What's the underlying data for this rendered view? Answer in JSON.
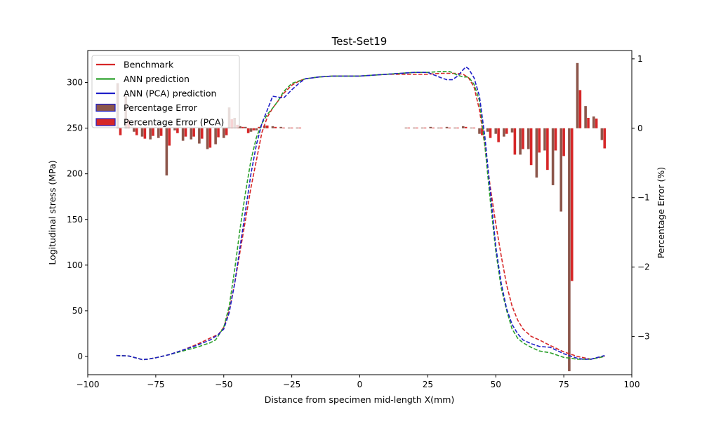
{
  "chart_data": {
    "type": "line",
    "title": "Test-Set19",
    "xlabel": "Distance from specimen mid-length X(mm)",
    "ylabel": "Logitudinal stress (MPa)",
    "y2label": "Percentage Error (%)",
    "xlim": [
      -100,
      100
    ],
    "ylim": [
      -20,
      335
    ],
    "y2lim": [
      -3.55,
      1.12
    ],
    "xticks": [
      -100,
      -75,
      -50,
      -25,
      0,
      25,
      50,
      75,
      100
    ],
    "yticks": [
      0,
      50,
      100,
      150,
      200,
      250,
      300
    ],
    "y2ticks": [
      -3,
      -2,
      -1,
      0,
      1
    ],
    "grid": false,
    "legend_placement": "top-left",
    "series": [
      {
        "name": "Benchmark",
        "color": "#d62728",
        "x": [
          -89.5,
          -85,
          -83,
          -80,
          -78,
          -75,
          -70,
          -65,
          -60,
          -55,
          -52,
          -50,
          -48,
          -46,
          -44,
          -42,
          -40,
          -38,
          -36,
          -34,
          -32,
          -30,
          -28,
          -25,
          -22,
          -20,
          -15,
          -10,
          -5,
          0,
          5,
          10,
          15,
          20,
          25,
          30,
          35,
          38,
          40,
          42,
          44,
          46,
          48,
          50,
          52,
          54,
          56,
          58,
          60,
          63,
          66,
          70,
          75,
          80,
          85,
          90
        ],
        "y": [
          1,
          0.5,
          -1,
          -3.5,
          -3,
          -1.5,
          2,
          7,
          13,
          20,
          24,
          32,
          50,
          80,
          115,
          150,
          185,
          215,
          245,
          262,
          272,
          280,
          288,
          297,
          302,
          304,
          306,
          307,
          307,
          307,
          308,
          309,
          309,
          309,
          309,
          310,
          310,
          309,
          305,
          295,
          270,
          230,
          185,
          145,
          110,
          78,
          55,
          40,
          30,
          22,
          18,
          12,
          5,
          0,
          -3,
          0
        ]
      },
      {
        "name": "ANN prediction",
        "color": "#2ca02c",
        "x": [
          -89.5,
          -85,
          -83,
          -80,
          -78,
          -75,
          -70,
          -65,
          -60,
          -55,
          -53,
          -50,
          -48,
          -46,
          -44,
          -42,
          -40,
          -38,
          -36,
          -34,
          -32,
          -30,
          -28,
          -25,
          -22,
          -20,
          -15,
          -10,
          -5,
          0,
          5,
          10,
          15,
          20,
          25,
          30,
          33,
          36,
          38,
          40,
          42,
          44,
          46,
          48,
          50,
          52,
          54,
          56,
          58,
          60,
          63,
          66,
          70,
          75,
          80,
          85,
          90
        ],
        "y": [
          1,
          0.5,
          -1,
          -3.5,
          -3,
          -1.5,
          2,
          6,
          10,
          15,
          18,
          32,
          55,
          95,
          140,
          180,
          215,
          240,
          255,
          265,
          272,
          280,
          290,
          299,
          302,
          304,
          306,
          307,
          307,
          307,
          308,
          309,
          310,
          311,
          311,
          312,
          312,
          308,
          306,
          306,
          298,
          280,
          230,
          170,
          115,
          75,
          50,
          30,
          20,
          15,
          10,
          6,
          4,
          -1,
          -3,
          -3,
          0
        ]
      },
      {
        "name": "ANN (PCA) prediction",
        "color": "#1f1fc8",
        "x": [
          -89.5,
          -85,
          -83,
          -80,
          -78,
          -75,
          -70,
          -65,
          -60,
          -55,
          -52,
          -50,
          -48,
          -46,
          -44,
          -42,
          -40,
          -38,
          -36,
          -34,
          -32,
          -30,
          -28,
          -25,
          -22,
          -20,
          -15,
          -10,
          -5,
          0,
          5,
          10,
          15,
          20,
          25,
          30,
          32,
          34,
          36,
          38,
          39,
          40,
          42,
          44,
          46,
          48,
          50,
          52,
          54,
          56,
          58,
          60,
          63,
          66,
          70,
          75,
          80,
          82,
          85,
          90
        ],
        "y": [
          1,
          0.5,
          -1,
          -3.5,
          -3,
          -1.5,
          2,
          7,
          12,
          18,
          24,
          30,
          48,
          80,
          120,
          160,
          200,
          232,
          255,
          270,
          285,
          284,
          283,
          292,
          300,
          304,
          306,
          307,
          307,
          307,
          308,
          309,
          310,
          311,
          311,
          305,
          303,
          303,
          307,
          314,
          317,
          315,
          305,
          285,
          240,
          180,
          120,
          80,
          52,
          35,
          25,
          18,
          14,
          11,
          10,
          3,
          -2,
          -3,
          -3,
          1
        ]
      },
      {
        "name": "Percentage Error",
        "color": "#8c564b",
        "edgecolor": "#1f1fc8",
        "type": "bar",
        "x": [
          -89,
          -86,
          -83,
          -80,
          -77,
          -74,
          -71,
          -68,
          -65,
          -62,
          -59,
          -56,
          -53,
          -50,
          -48,
          -46,
          -44,
          -42,
          -40,
          -38,
          -35,
          -32,
          -29,
          -26,
          -23,
          17,
          20,
          23,
          26,
          29,
          32,
          35,
          38,
          41,
          44,
          47,
          50,
          53,
          56,
          59,
          62,
          65,
          68,
          71,
          74,
          77,
          80,
          83,
          86,
          89
        ],
        "values": [
          0.65,
          0.47,
          -0.05,
          -0.12,
          -0.16,
          -0.14,
          -0.68,
          -0.03,
          -0.18,
          -0.16,
          -0.22,
          -0.3,
          -0.23,
          -0.14,
          0.3,
          0.15,
          0.03,
          0.02,
          -0.05,
          -0.03,
          0.04,
          0.03,
          0.02,
          0.01,
          0.01,
          0.01,
          0.01,
          0.01,
          0.02,
          0.01,
          0.02,
          0.01,
          0.03,
          0.01,
          -0.08,
          -0.05,
          -0.08,
          -0.12,
          -0.06,
          -0.38,
          -0.3,
          -0.71,
          -0.32,
          -0.82,
          -1.2,
          -3.5,
          0.94,
          0.32,
          0.17,
          -0.17
        ]
      },
      {
        "name": "Percentage Error (PCA)",
        "color": "#d62728",
        "edgecolor": "#1f1fc8",
        "type": "bar",
        "x": [
          -88,
          -85,
          -82,
          -79,
          -76,
          -73,
          -70,
          -67,
          -64,
          -61,
          -58,
          -55,
          -52,
          -49,
          -47,
          -45,
          -43,
          -41,
          -39,
          -37,
          -34,
          -31,
          -28,
          -25,
          -22,
          18,
          21,
          24,
          27,
          30,
          33,
          36,
          39,
          42,
          45,
          48,
          51,
          54,
          57,
          60,
          63,
          66,
          69,
          72,
          75,
          78,
          81,
          84,
          87,
          90
        ],
        "values": [
          -0.1,
          0.12,
          -0.1,
          -0.15,
          -0.11,
          -0.11,
          -0.25,
          -0.07,
          -0.12,
          -0.12,
          -0.15,
          -0.28,
          -0.13,
          -0.1,
          0.13,
          0.05,
          0.02,
          -0.07,
          -0.03,
          0.02,
          0.04,
          0.02,
          0.01,
          0.01,
          0.01,
          0.01,
          0.01,
          0.01,
          0.01,
          0.01,
          0.01,
          0.01,
          0.02,
          0.01,
          -0.1,
          -0.14,
          -0.2,
          -0.08,
          -0.38,
          -0.3,
          -0.53,
          -0.35,
          -0.6,
          -0.32,
          -0.4,
          -2.2,
          0.55,
          0.15,
          0.14,
          -0.29
        ]
      }
    ]
  }
}
